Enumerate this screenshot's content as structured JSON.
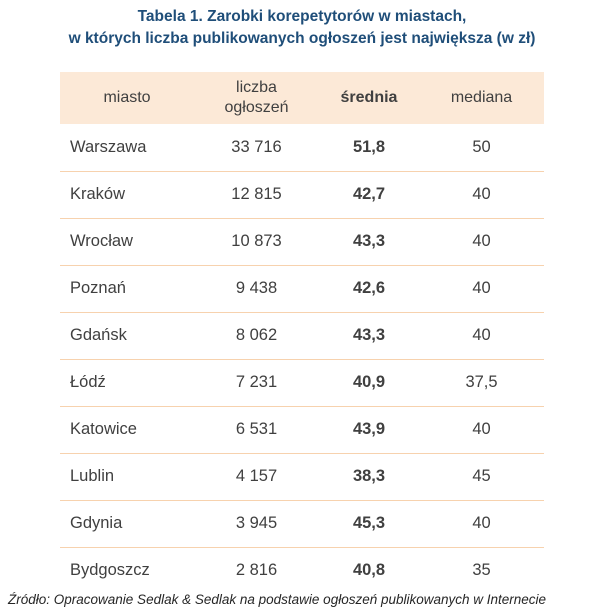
{
  "title": {
    "line1": "Tabela 1. Zarobki korepetytorów w miastach,",
    "line2": "w których liczba publikowanych ogłoszeń jest największa (w zł)"
  },
  "table": {
    "headers": {
      "city": "miasto",
      "ads_line1": "liczba",
      "ads_line2": "ogłoszeń",
      "mean": "średnia",
      "median": "mediana"
    },
    "rows": [
      {
        "city": "Warszawa",
        "ads": "33 716",
        "mean": "51,8",
        "median": "50"
      },
      {
        "city": "Kraków",
        "ads": "12 815",
        "mean": "42,7",
        "median": "40"
      },
      {
        "city": "Wrocław",
        "ads": "10 873",
        "mean": "43,3",
        "median": "40"
      },
      {
        "city": "Poznań",
        "ads": "9 438",
        "mean": "42,6",
        "median": "40"
      },
      {
        "city": "Gdańsk",
        "ads": "8 062",
        "mean": "43,3",
        "median": "40"
      },
      {
        "city": "Łódź",
        "ads": "7 231",
        "mean": "40,9",
        "median": "37,5"
      },
      {
        "city": "Katowice",
        "ads": "6 531",
        "mean": "43,9",
        "median": "40"
      },
      {
        "city": "Lublin",
        "ads": "4 157",
        "mean": "38,3",
        "median": "45"
      },
      {
        "city": "Gdynia",
        "ads": "3 945",
        "mean": "45,3",
        "median": "40"
      },
      {
        "city": "Bydgoszcz",
        "ads": "2 816",
        "mean": "40,8",
        "median": "35"
      }
    ]
  },
  "source": "Źródło: Opracowanie Sedlak & Sedlak na podstawie ogłoszeń publikowanych w Internecie",
  "colors": {
    "title": "#1f4e79",
    "header_bg": "#fce9d7",
    "row_border": "#f7d2ae",
    "text": "#404040"
  }
}
